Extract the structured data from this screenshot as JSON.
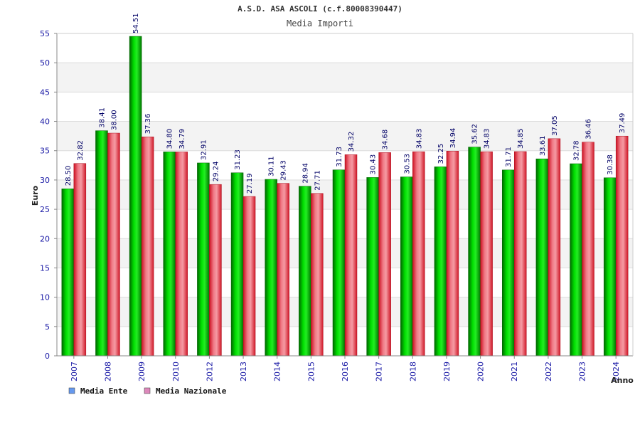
{
  "chart_data": {
    "type": "bar",
    "title": "A.S.D. ASA ASCOLI (c.f.80008390447)",
    "subtitle": "Media Importi",
    "xlabel": "Anno",
    "ylabel": "Euro",
    "ylim": [
      0,
      55
    ],
    "yticks": [
      0,
      5,
      10,
      15,
      20,
      25,
      30,
      35,
      40,
      45,
      50,
      55
    ],
    "grid": true,
    "legend_position": "bottom-left",
    "categories": [
      "2007",
      "2008",
      "2009",
      "2010",
      "2012",
      "2013",
      "2014",
      "2015",
      "2016",
      "2017",
      "2018",
      "2019",
      "2020",
      "2021",
      "2022",
      "2023",
      "2024"
    ],
    "series": [
      {
        "name": "Media Ente",
        "color": "#00aa00",
        "legend_color": "#6699ee",
        "values": [
          28.5,
          38.41,
          54.51,
          34.8,
          32.91,
          31.23,
          30.11,
          28.94,
          31.73,
          30.43,
          30.53,
          32.25,
          35.62,
          31.71,
          33.61,
          32.78,
          30.38
        ],
        "labels": [
          "28.50",
          "38.41",
          "54.51",
          "34.80",
          "32.91",
          "31.23",
          "30.11",
          "28.94",
          "31.73",
          "30.43",
          "30.53",
          "32.25",
          "35.62",
          "31.71",
          "33.61",
          "32.78",
          "30.38"
        ]
      },
      {
        "name": "Media Nazionale",
        "color": "#e8283c",
        "legend_color": "#dd88bb",
        "values": [
          32.82,
          38.0,
          37.36,
          34.79,
          29.24,
          27.19,
          29.43,
          27.71,
          34.32,
          34.68,
          34.83,
          34.94,
          34.83,
          34.85,
          37.05,
          36.46,
          37.49
        ],
        "labels": [
          "32.82",
          "38.00",
          "37.36",
          "34.79",
          "29.24",
          "27.19",
          "29.43",
          "27.71",
          "34.32",
          "34.68",
          "34.83",
          "34.94",
          "34.83",
          "34.85",
          "37.05",
          "36.46",
          "37.49"
        ]
      }
    ]
  }
}
